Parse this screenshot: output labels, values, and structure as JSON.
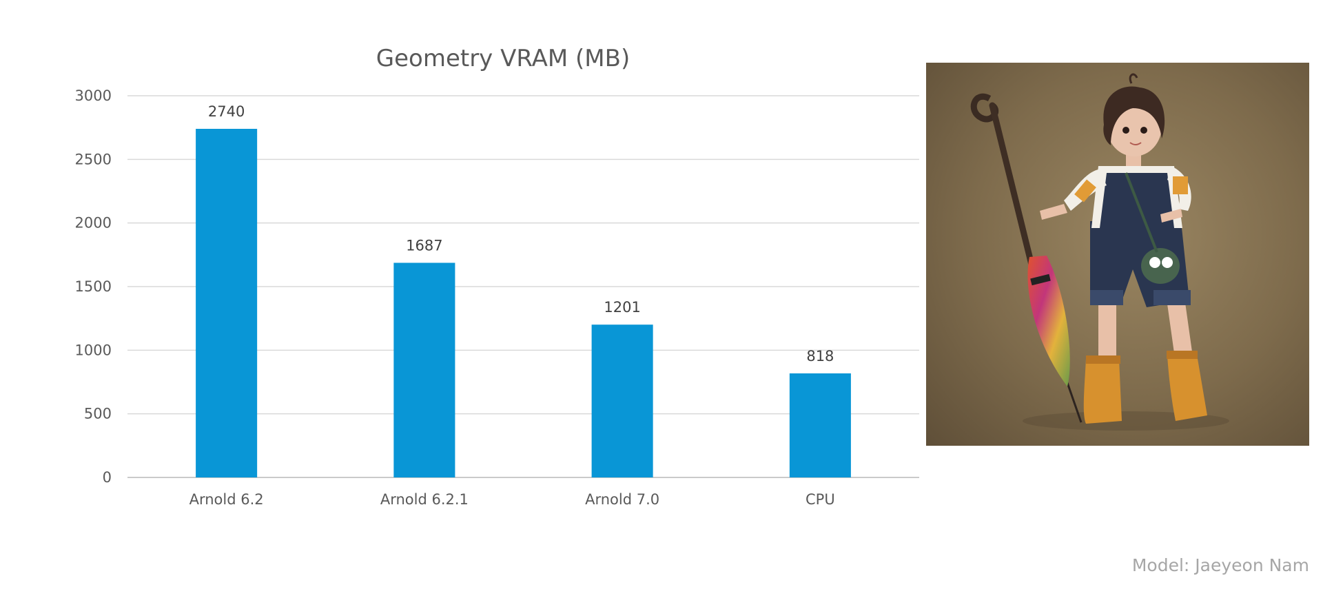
{
  "chart_data": {
    "type": "bar",
    "title": "Geometry VRAM (MB)",
    "xlabel": "",
    "ylabel": "",
    "categories": [
      "Arnold 6.2",
      "Arnold 6.2.1",
      "Arnold 7.0",
      "CPU"
    ],
    "values": [
      2740,
      1687,
      1201,
      818
    ],
    "ylim": [
      0,
      3000
    ],
    "yticks": [
      0,
      500,
      1000,
      1500,
      2000,
      2500,
      3000
    ],
    "grid": true,
    "data_labels": true,
    "bar_color": "#0996d6"
  },
  "credit": "Model: Jaeyeon Nam",
  "render_image": {
    "description": "3D character render: girl in denim overalls with a colorful umbrella and a cane",
    "background_color": "#8a7656"
  }
}
